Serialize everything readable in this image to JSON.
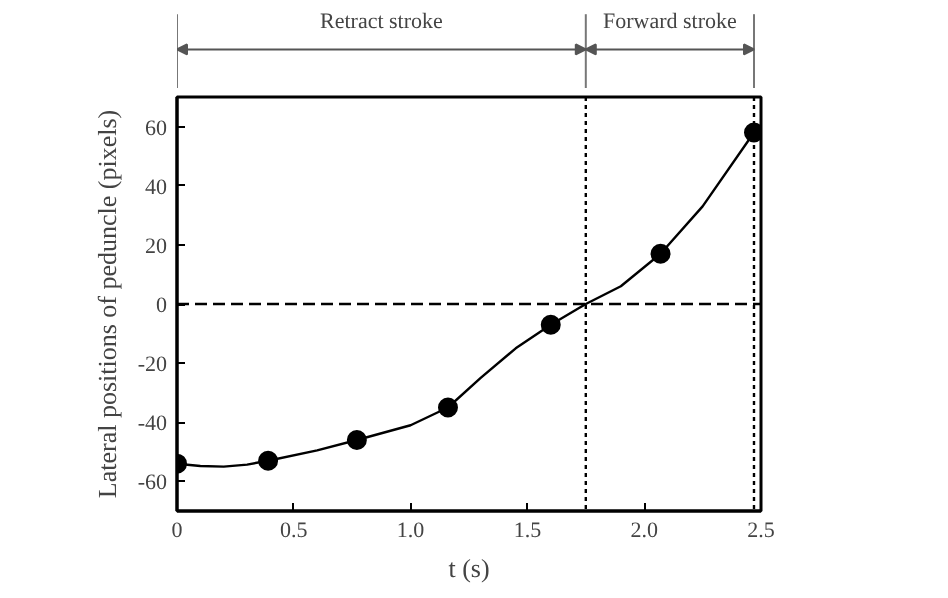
{
  "chart_data": {
    "type": "scatter",
    "xlabel": "t (s)",
    "ylabel": "Lateral positions of peduncle (pixels)",
    "xlim": [
      0,
      2.5
    ],
    "ylim": [
      -70,
      70
    ],
    "xticks": [
      0,
      0.5,
      {
        "value": 1,
        "label": "1.0"
      },
      1.5,
      {
        "value": 2,
        "label": "2.0"
      },
      2.5
    ],
    "yticks": [
      -60,
      -40,
      -20,
      0,
      20,
      40,
      60
    ],
    "grid": false,
    "series": [
      {
        "color": "#000000",
        "x": [
          0,
          0.39,
          0.77,
          1.16,
          1.6,
          2.07,
          2.47
        ],
        "values": [
          -54,
          -53,
          -46,
          -35,
          -7,
          17,
          58
        ]
      },
      {
        "type": "line",
        "line_style": "solid",
        "color": "#000000",
        "x": [
          0,
          0.1,
          0.2,
          0.3,
          0.39,
          0.6,
          0.77,
          1.0,
          1.16,
          1.3,
          1.45,
          1.6,
          1.75,
          1.9,
          2.07,
          2.25,
          2.47
        ],
        "values": [
          -54,
          -54.8,
          -55,
          -54.3,
          -53,
          -49.5,
          -46,
          -41,
          -35,
          -25,
          -15,
          -7,
          0,
          6,
          17,
          33,
          58
        ]
      }
    ],
    "ref_lines": [
      {
        "axis": "y",
        "value": 0,
        "line_style": "dashed",
        "color": "#000000"
      },
      {
        "axis": "x",
        "value": 1.75,
        "line_style": "dotted",
        "color": "#000000"
      },
      {
        "axis": "x",
        "value": 2.47,
        "line_style": "dotted",
        "color": "#000000"
      }
    ],
    "annotations": [
      "Retract stroke",
      "Forward stroke"
    ]
  }
}
